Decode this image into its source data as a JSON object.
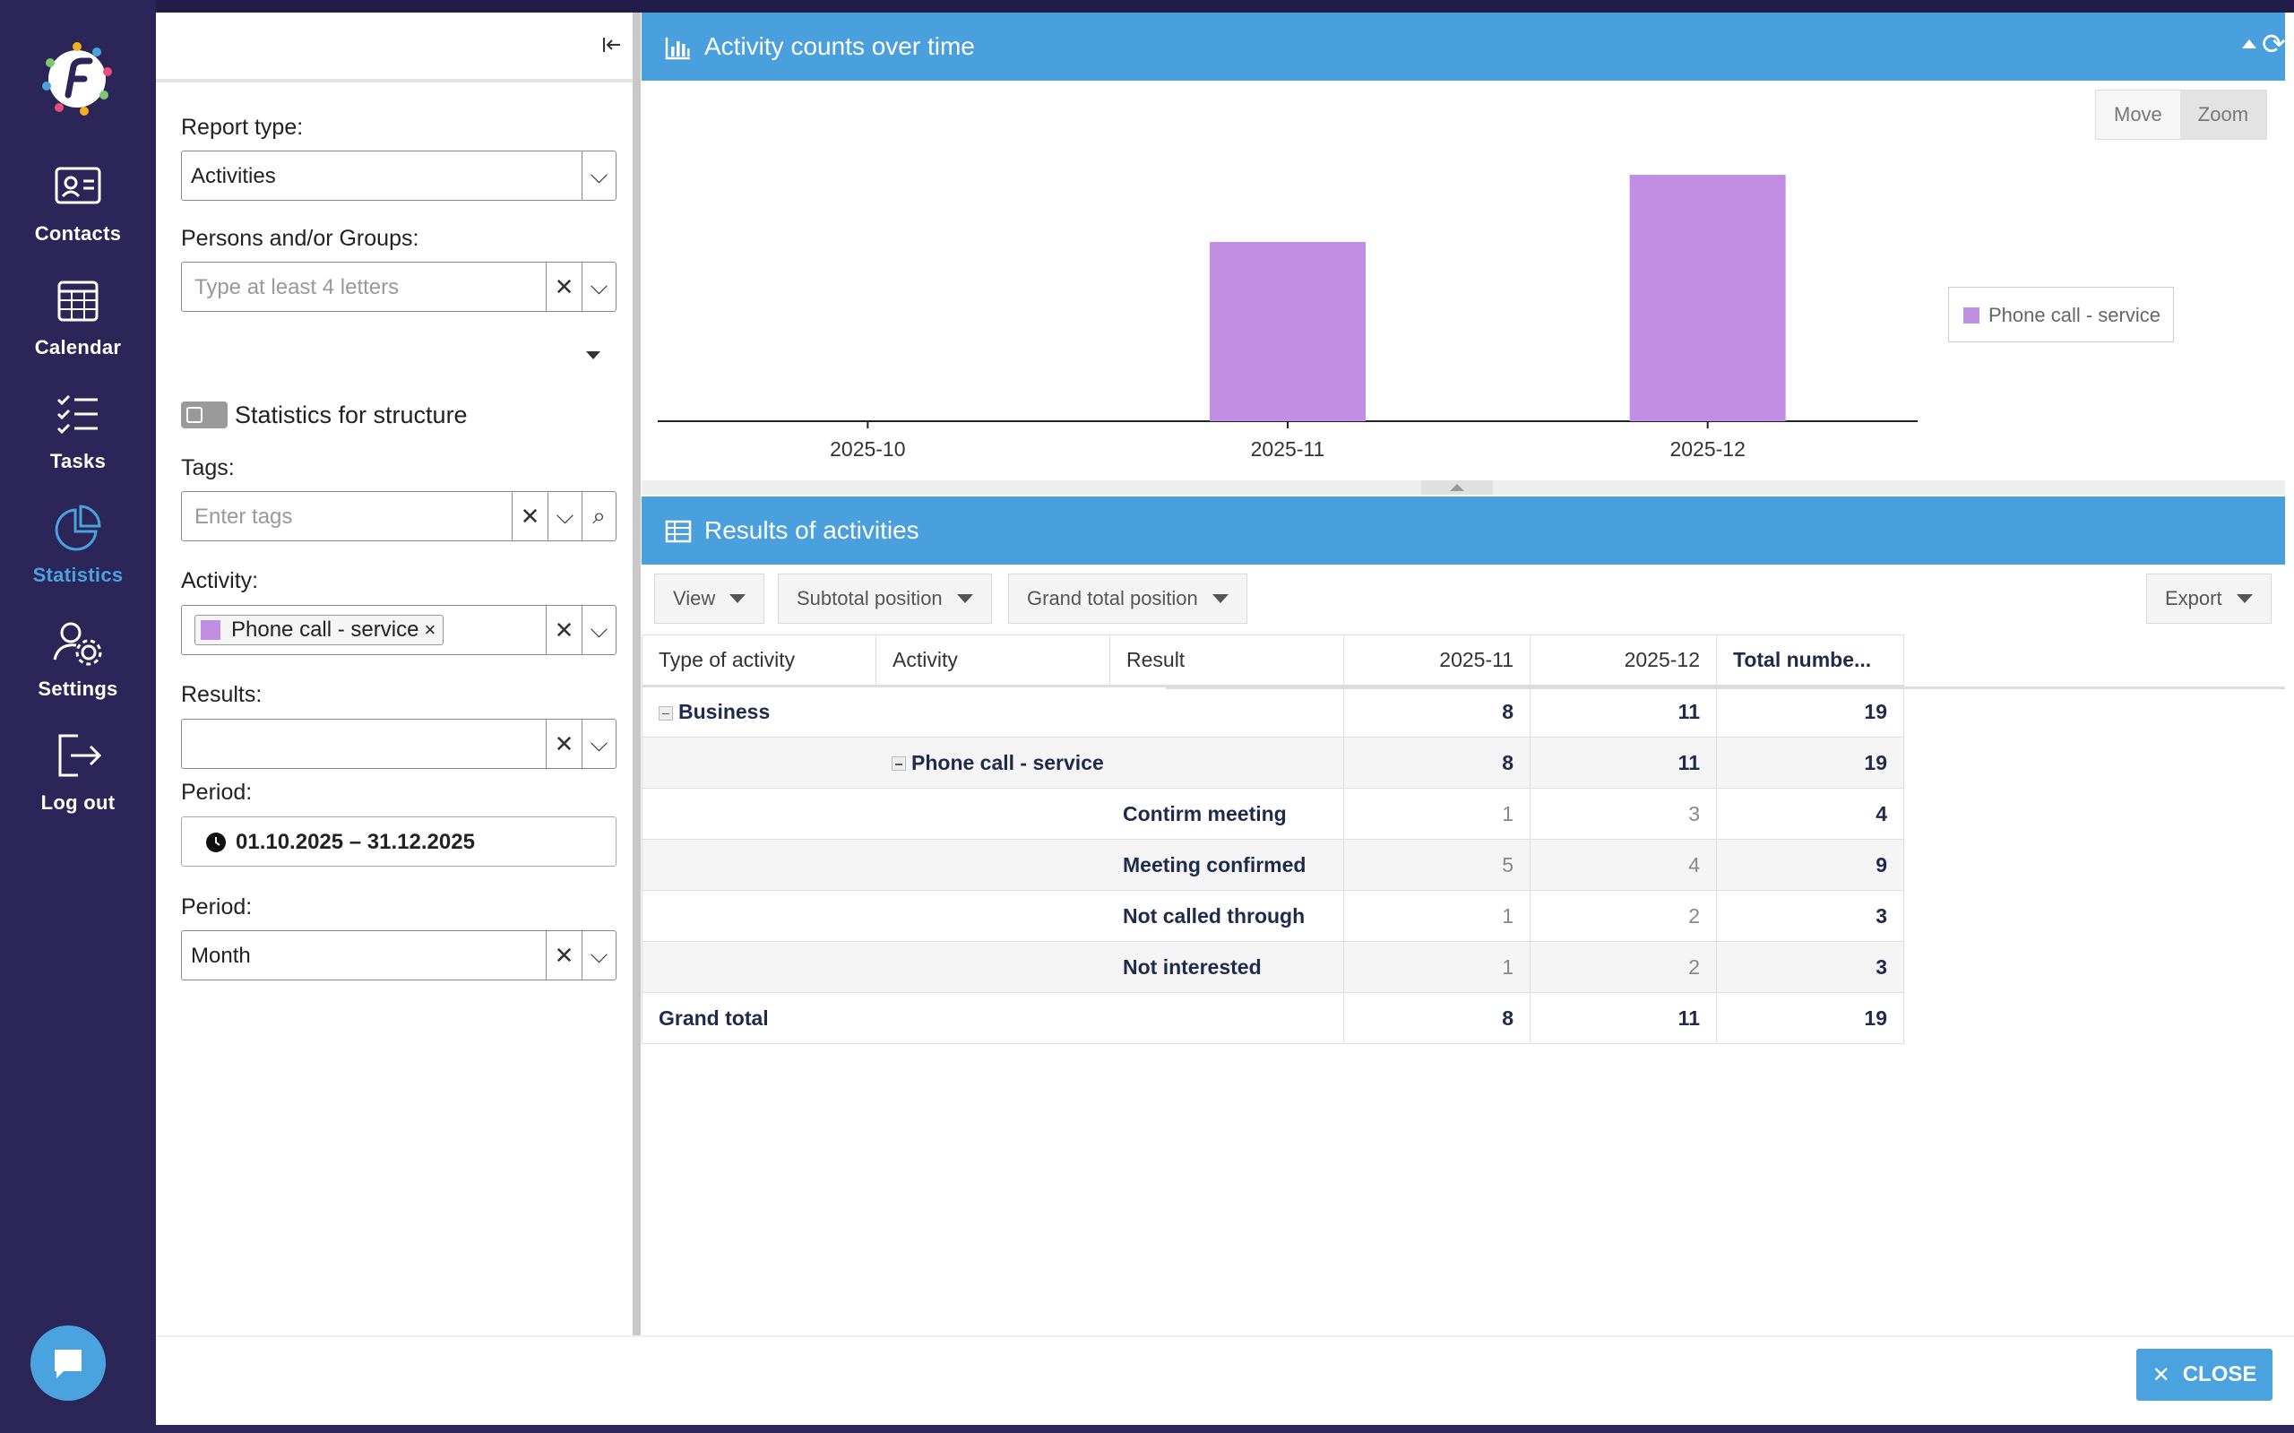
{
  "nav": {
    "items": [
      {
        "label": "Contacts",
        "icon": "contacts-icon"
      },
      {
        "label": "Calendar",
        "icon": "calendar-icon"
      },
      {
        "label": "Tasks",
        "icon": "tasks-icon"
      },
      {
        "label": "Statistics",
        "icon": "statistics-icon"
      },
      {
        "label": "Settings",
        "icon": "settings-icon"
      },
      {
        "label": "Log out",
        "icon": "logout-icon"
      }
    ],
    "active": "Statistics",
    "accent": "#4aa3df"
  },
  "filters": {
    "report_type_label": "Report type:",
    "report_type_value": "Activities",
    "persons_label": "Persons and/or Groups:",
    "persons_placeholder": "Type at least 4 letters",
    "structure_label": "Statistics for structure",
    "tags_label": "Tags:",
    "tags_placeholder": "Enter tags",
    "activity_label": "Activity:",
    "activity_chip": "Phone call - service",
    "results_label": "Results:",
    "period_label": "Period:",
    "period_range": "01.10.2025 – 31.12.2025",
    "period2_label": "Period:",
    "period2_value": "Month"
  },
  "chart_panel": {
    "title": "Activity counts over time",
    "move_label": "Move",
    "zoom_label": "Zoom"
  },
  "chart_data": {
    "type": "bar",
    "categories": [
      "2025-10",
      "2025-11",
      "2025-12"
    ],
    "series": [
      {
        "name": "Phone call - service",
        "values": [
          0,
          8,
          11
        ],
        "color": "#c18ee3"
      }
    ],
    "ylim": [
      0,
      12
    ],
    "title": "Activity counts over time",
    "legend": "right"
  },
  "results_panel": {
    "title": "Results of activities",
    "view_label": "View",
    "subtotal_label": "Subtotal position",
    "grandtotal_label": "Grand total position",
    "export_label": "Export",
    "columns": [
      "Type of activity",
      "Activity",
      "Result",
      "2025-11",
      "2025-12",
      "Total numbe..."
    ],
    "business_label": "Business",
    "business_vals": [
      "8",
      "11",
      "19"
    ],
    "activity_name": "Phone call - service",
    "activity_vals": [
      "8",
      "11",
      "19"
    ],
    "rows": [
      {
        "result": "Contirm meeting",
        "v1": "1",
        "v2": "3",
        "total": "4"
      },
      {
        "result": "Meeting confirmed",
        "v1": "5",
        "v2": "4",
        "total": "9"
      },
      {
        "result": "Not called through",
        "v1": "1",
        "v2": "2",
        "total": "3"
      },
      {
        "result": "Not interested",
        "v1": "1",
        "v2": "2",
        "total": "3"
      }
    ],
    "grand_total_label": "Grand total",
    "grand_vals": [
      "8",
      "11",
      "19"
    ]
  },
  "footer": {
    "close_label": "CLOSE"
  }
}
